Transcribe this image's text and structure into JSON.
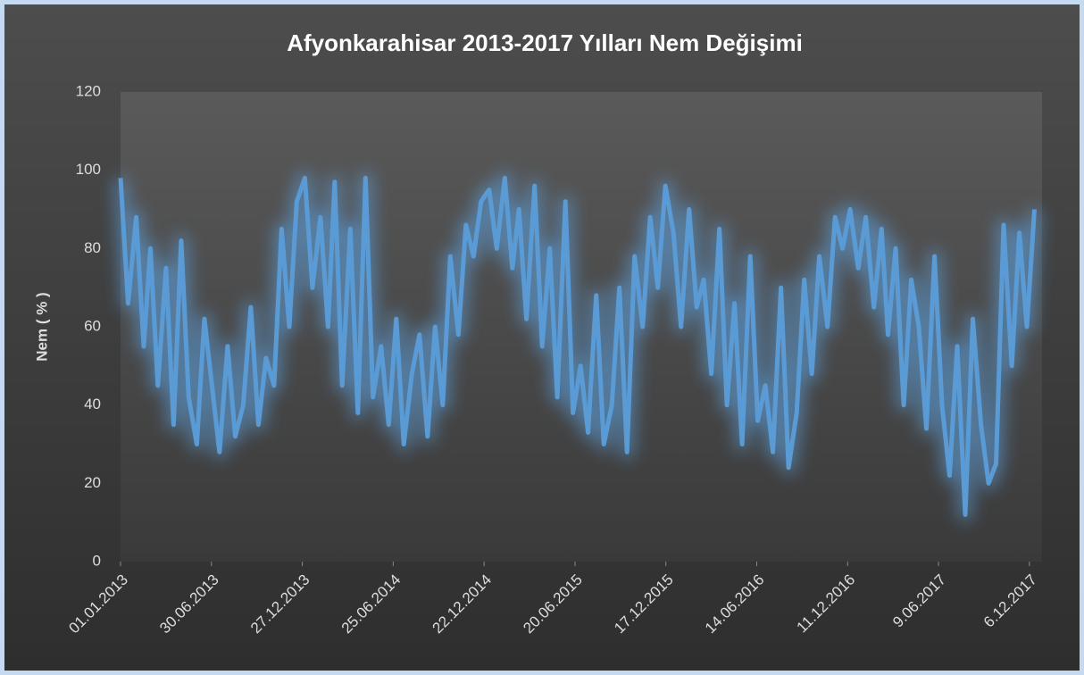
{
  "chart_data": {
    "type": "line",
    "title": "Afyonkarahisar  2013-2017 Yılları Nem Değişimi",
    "y_label": "Nem ( % )",
    "x": [
      "01.01.2013",
      "16.01.2013",
      "01.02.2013",
      "16.02.2013",
      "01.03.2013",
      "16.03.2013",
      "01.04.2013",
      "16.04.2013",
      "01.05.2013",
      "16.05.2013",
      "01.06.2013",
      "16.06.2013",
      "01.07.2013",
      "16.07.2013",
      "01.08.2013",
      "16.08.2013",
      "01.09.2013",
      "16.09.2013",
      "01.10.2013",
      "16.10.2013",
      "01.11.2013",
      "16.11.2013",
      "01.12.2013",
      "16.12.2013",
      "01.01.2014",
      "16.01.2014",
      "01.02.2014",
      "16.02.2014",
      "01.03.2014",
      "16.03.2014",
      "01.04.2014",
      "16.04.2014",
      "01.05.2014",
      "16.05.2014",
      "01.06.2014",
      "16.06.2014",
      "01.07.2014",
      "16.07.2014",
      "01.08.2014",
      "16.08.2014",
      "01.09.2014",
      "16.09.2014",
      "01.10.2014",
      "16.10.2014",
      "01.11.2014",
      "16.11.2014",
      "01.12.2014",
      "16.12.2014",
      "01.01.2015",
      "16.01.2015",
      "01.02.2015",
      "16.02.2015",
      "01.03.2015",
      "16.03.2015",
      "01.04.2015",
      "16.04.2015",
      "01.05.2015",
      "16.05.2015",
      "01.06.2015",
      "16.06.2015",
      "01.07.2015",
      "16.07.2015",
      "01.08.2015",
      "16.08.2015",
      "01.09.2015",
      "16.09.2015",
      "01.10.2015",
      "16.10.2015",
      "01.11.2015",
      "16.11.2015",
      "01.12.2015",
      "16.12.2015",
      "01.01.2016",
      "16.01.2016",
      "01.02.2016",
      "16.02.2016",
      "01.03.2016",
      "16.03.2016",
      "01.04.2016",
      "16.04.2016",
      "01.05.2016",
      "16.05.2016",
      "01.06.2016",
      "16.06.2016",
      "01.07.2016",
      "16.07.2016",
      "01.08.2016",
      "16.08.2016",
      "01.09.2016",
      "16.09.2016",
      "01.10.2016",
      "16.10.2016",
      "01.11.2016",
      "16.11.2016",
      "01.12.2016",
      "16.12.2016",
      "01.01.2017",
      "16.01.2017",
      "01.02.2017",
      "16.02.2017",
      "01.03.2017",
      "16.03.2017",
      "01.04.2017",
      "16.04.2017",
      "01.05.2017",
      "16.05.2017",
      "01.06.2017",
      "16.06.2017",
      "01.07.2017",
      "16.07.2017",
      "01.08.2017",
      "16.08.2017",
      "01.09.2017",
      "16.09.2017",
      "01.10.2017",
      "16.10.2017",
      "01.11.2017",
      "16.11.2017",
      "01.12.2017",
      "16.12.2017"
    ],
    "series": [
      {
        "name": "Nem",
        "color": "#5b9bd5",
        "values": [
          98,
          66,
          88,
          55,
          80,
          45,
          75,
          35,
          82,
          42,
          30,
          62,
          45,
          28,
          55,
          32,
          40,
          65,
          35,
          52,
          45,
          85,
          60,
          92,
          98,
          70,
          88,
          60,
          97,
          45,
          85,
          38,
          98,
          42,
          55,
          35,
          62,
          30,
          48,
          58,
          32,
          60,
          40,
          78,
          58,
          86,
          78,
          92,
          95,
          80,
          98,
          75,
          90,
          62,
          96,
          55,
          80,
          42,
          92,
          38,
          50,
          33,
          68,
          30,
          40,
          70,
          28,
          78,
          60,
          88,
          70,
          96,
          84,
          60,
          90,
          65,
          72,
          48,
          85,
          40,
          66,
          30,
          78,
          36,
          45,
          28,
          70,
          24,
          38,
          72,
          48,
          78,
          60,
          88,
          80,
          90,
          75,
          88,
          65,
          85,
          58,
          80,
          40,
          72,
          60,
          34,
          78,
          40,
          22,
          55,
          12,
          62,
          35,
          20,
          25,
          86,
          50,
          84,
          60,
          90
        ]
      }
    ],
    "xlim": [
      "01.01.2013",
      "31.12.2017"
    ],
    "xticks": [
      "01.01.2013",
      "30.06.2013",
      "27.12.2013",
      "25.06.2014",
      "22.12.2014",
      "20.06.2015",
      "17.12.2015",
      "14.06.2016",
      "11.12.2016",
      "9.06.2017",
      "6.12.2017"
    ],
    "ylim": [
      0,
      120
    ],
    "yticks": [
      0,
      20,
      40,
      60,
      80,
      100,
      120
    ],
    "grid": false
  }
}
